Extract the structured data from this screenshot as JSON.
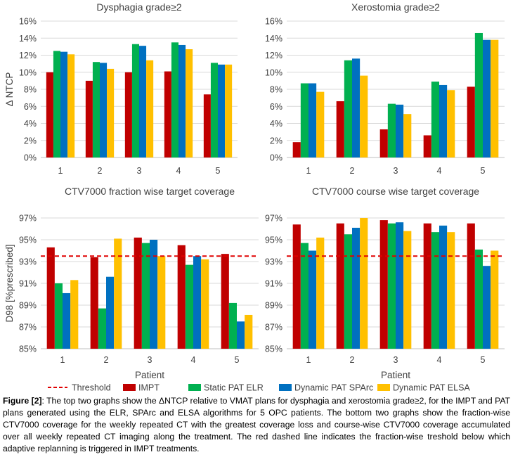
{
  "colors": {
    "IMPT": "#c00000",
    "Static PAT ELR": "#00b050",
    "Dynamic PAT SPArc": "#0070c0",
    "Dynamic PAT ELSA": "#ffc000",
    "threshold": "#e00000",
    "grid": "#d9d9d9"
  },
  "chart_data": [
    {
      "type": "bar",
      "title": "Dysphagia grade≥2",
      "ylabel": "Δ NTCP",
      "xlabel": "",
      "categories": [
        "1",
        "2",
        "3",
        "4",
        "5"
      ],
      "ylim": [
        0,
        16
      ],
      "yticks": [
        "0%",
        "2%",
        "4%",
        "6%",
        "8%",
        "10%",
        "12%",
        "14%",
        "16%"
      ],
      "ytick_values": [
        0,
        2,
        4,
        6,
        8,
        10,
        12,
        14,
        16
      ],
      "series": [
        {
          "name": "IMPT",
          "values": [
            10.0,
            9.0,
            10.0,
            10.1,
            7.4
          ]
        },
        {
          "name": "Static PAT ELR",
          "values": [
            12.5,
            11.2,
            13.3,
            13.5,
            11.1
          ]
        },
        {
          "name": "Dynamic PAT SPArc",
          "values": [
            12.4,
            11.1,
            13.1,
            13.2,
            10.9
          ]
        },
        {
          "name": "Dynamic PAT ELSA",
          "values": [
            12.1,
            10.4,
            11.4,
            12.7,
            10.9
          ]
        }
      ],
      "grid": true
    },
    {
      "type": "bar",
      "title": "Xerostomia grade≥2",
      "ylabel": "",
      "xlabel": "",
      "categories": [
        "1",
        "2",
        "3",
        "4",
        "5"
      ],
      "ylim": [
        0,
        16
      ],
      "yticks": [
        "0%",
        "2%",
        "4%",
        "6%",
        "8%",
        "10%",
        "12%",
        "14%",
        "16%"
      ],
      "ytick_values": [
        0,
        2,
        4,
        6,
        8,
        10,
        12,
        14,
        16
      ],
      "series": [
        {
          "name": "IMPT",
          "values": [
            1.8,
            6.6,
            3.3,
            2.6,
            8.3
          ]
        },
        {
          "name": "Static PAT ELR",
          "values": [
            8.7,
            11.4,
            6.3,
            8.9,
            14.6
          ]
        },
        {
          "name": "Dynamic PAT SPArc",
          "values": [
            8.7,
            11.6,
            6.2,
            8.5,
            13.8
          ]
        },
        {
          "name": "Dynamic PAT ELSA",
          "values": [
            7.7,
            9.6,
            5.1,
            7.9,
            13.8
          ]
        }
      ],
      "grid": true
    },
    {
      "type": "bar",
      "title": "CTV7000 fraction wise target coverage",
      "ylabel": "D98 [%prescribed]",
      "xlabel": "Patient",
      "categories": [
        "1",
        "2",
        "3",
        "4",
        "5"
      ],
      "ylim": [
        85,
        97
      ],
      "yticks": [
        "85%",
        "87%",
        "89%",
        "91%",
        "93%",
        "95%",
        "97%"
      ],
      "ytick_values": [
        85,
        87,
        89,
        91,
        93,
        95,
        97
      ],
      "threshold": 93.5,
      "series": [
        {
          "name": "IMPT",
          "values": [
            94.3,
            93.4,
            95.2,
            94.5,
            93.7
          ]
        },
        {
          "name": "Static PAT ELR",
          "values": [
            91.0,
            88.7,
            94.7,
            92.7,
            89.2
          ]
        },
        {
          "name": "Dynamic PAT SPArc",
          "values": [
            90.1,
            91.6,
            95.0,
            93.5,
            87.5
          ]
        },
        {
          "name": "Dynamic PAT ELSA",
          "values": [
            91.3,
            95.1,
            93.5,
            93.2,
            88.1
          ]
        }
      ],
      "grid": true
    },
    {
      "type": "bar",
      "title": "CTV7000 course wise target coverage",
      "ylabel": "",
      "xlabel": "Patient",
      "categories": [
        "1",
        "2",
        "3",
        "4",
        "5"
      ],
      "ylim": [
        85,
        97
      ],
      "yticks": [
        "85%",
        "87%",
        "89%",
        "91%",
        "93%",
        "95%",
        "97%"
      ],
      "ytick_values": [
        85,
        87,
        89,
        91,
        93,
        95,
        97
      ],
      "threshold": 93.5,
      "series": [
        {
          "name": "IMPT",
          "values": [
            96.4,
            96.5,
            96.8,
            96.5,
            96.5
          ]
        },
        {
          "name": "Static PAT ELR",
          "values": [
            94.7,
            95.5,
            96.5,
            95.7,
            94.1
          ]
        },
        {
          "name": "Dynamic PAT SPArc",
          "values": [
            94.0,
            96.1,
            96.6,
            96.3,
            92.6
          ]
        },
        {
          "name": "Dynamic PAT ELSA",
          "values": [
            95.2,
            97.0,
            95.8,
            95.7,
            94.0
          ]
        }
      ],
      "grid": true
    }
  ],
  "legend": {
    "items": [
      "Threshold",
      "IMPT",
      "Static PAT ELR",
      "Dynamic PAT SPArc",
      "Dynamic PAT ELSA"
    ],
    "placement": "bottom"
  },
  "caption": {
    "label": "Figure [2]",
    "text": ": The top two graphs show the ΔNTCP relative to VMAT plans for dysphagia and xerostomia grade≥2, for the IMPT and PAT plans generated using the ELR, SPArc and ELSA algorithms for 5 OPC patients. The bottom two graphs show the fraction-wise CTV7000 coverage for the weekly repeated CT with the greatest coverage loss and course-wise CTV7000 coverage accumulated over all weekly repeated CT imaging along the treatment. The red dashed line indicates the fraction-wise treshold below which adaptive replanning is triggered in IMPT treatments."
  }
}
